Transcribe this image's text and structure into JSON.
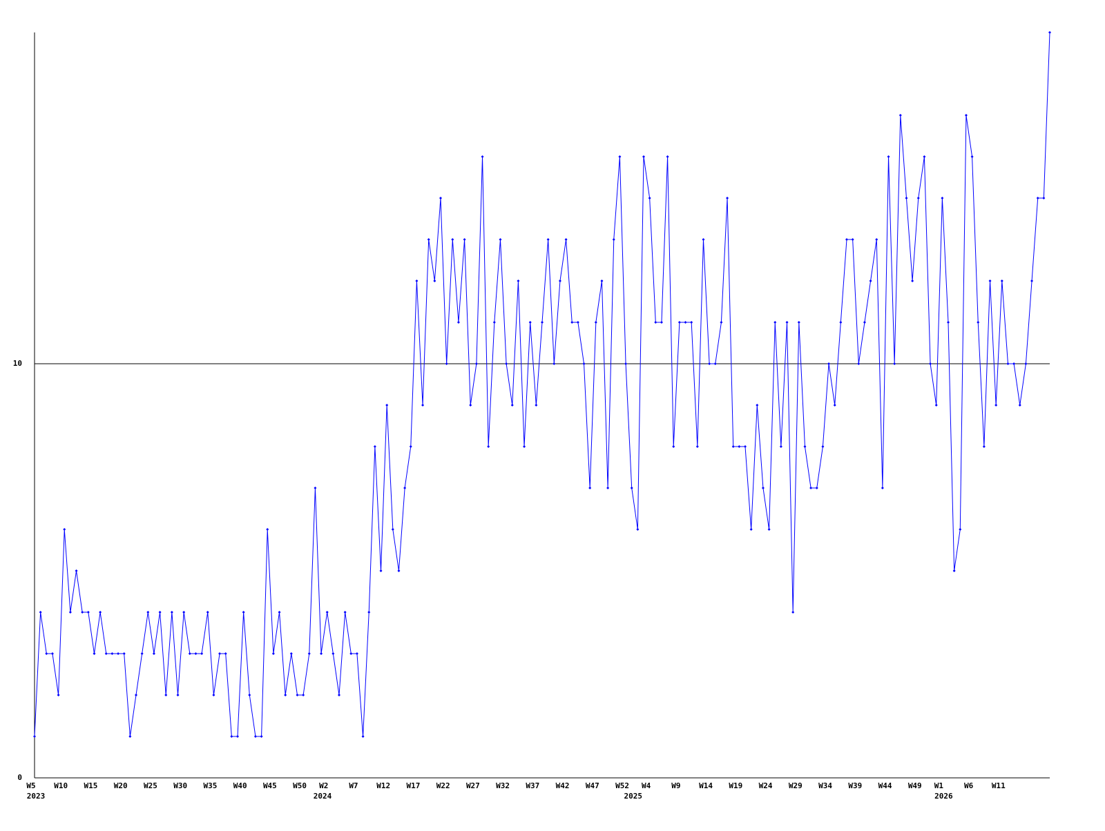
{
  "chart_data": {
    "type": "line",
    "categories": [
      "W5",
      null,
      null,
      null,
      null,
      "W10",
      null,
      null,
      null,
      null,
      "W15",
      null,
      null,
      null,
      null,
      "W20",
      null,
      null,
      null,
      null,
      "W25",
      null,
      null,
      null,
      null,
      "W30",
      null,
      null,
      null,
      null,
      "W35",
      null,
      null,
      null,
      null,
      "W40",
      null,
      null,
      null,
      null,
      "W45",
      null,
      null,
      null,
      null,
      "W50",
      null,
      null,
      null,
      "W2",
      null,
      null,
      null,
      null,
      "W7",
      null,
      null,
      null,
      null,
      "W12",
      null,
      null,
      null,
      null,
      "W17",
      null,
      null,
      null,
      null,
      "W22",
      null,
      null,
      null,
      null,
      "W27",
      null,
      null,
      null,
      null,
      "W32",
      null,
      null,
      null,
      null,
      "W37",
      null,
      null,
      null,
      null,
      "W42",
      null,
      null,
      null,
      null,
      "W47",
      null,
      null,
      null,
      null,
      "W52",
      null,
      null,
      null,
      "W4",
      null,
      null,
      null,
      null,
      "W9",
      null,
      null,
      null,
      null,
      "W14",
      null,
      null,
      null,
      null,
      "W19",
      null,
      null,
      null,
      null,
      "W24",
      null,
      null,
      null,
      null,
      "W29",
      null,
      null,
      null,
      null,
      "W34",
      null,
      null,
      null,
      null,
      "W39",
      null,
      null,
      null,
      null,
      "W44",
      null,
      null,
      null,
      null,
      "W49",
      null,
      null,
      null,
      "W1",
      null,
      null,
      null,
      null,
      "W6",
      null,
      null,
      null,
      null,
      "W11",
      null,
      null,
      null,
      null,
      null,
      null,
      null,
      null
    ],
    "category_years": [
      "2023",
      null,
      null,
      null,
      null,
      null,
      null,
      null,
      null,
      null,
      null,
      null,
      null,
      null,
      null,
      null,
      null,
      null,
      null,
      null,
      null,
      null,
      null,
      null,
      null,
      null,
      null,
      null,
      null,
      null,
      null,
      null,
      null,
      null,
      null,
      null,
      null,
      null,
      null,
      null,
      null,
      null,
      null,
      null,
      null,
      null,
      null,
      null,
      "2024",
      null,
      null,
      null,
      null,
      null,
      null,
      null,
      null,
      null,
      null,
      null,
      null,
      null,
      null,
      null,
      null,
      null,
      null,
      null,
      null,
      null,
      null,
      null,
      null,
      null,
      null,
      null,
      null,
      null,
      null,
      null,
      null,
      null,
      null,
      null,
      null,
      null,
      null,
      null,
      null,
      null,
      null,
      null,
      null,
      null,
      null,
      null,
      null,
      null,
      null,
      null,
      "2025",
      null,
      null,
      null,
      null,
      null,
      null,
      null,
      null,
      null,
      null,
      null,
      null,
      null,
      null,
      null,
      null,
      null,
      null,
      null,
      null,
      null,
      null,
      null,
      null,
      null,
      null,
      null,
      null,
      null,
      null,
      null,
      null,
      null,
      null,
      null,
      null,
      null,
      null,
      null,
      null,
      null,
      null,
      null,
      null,
      null,
      null,
      null,
      null,
      null,
      null,
      null,
      "2026",
      null,
      null,
      null,
      null,
      null,
      null,
      null,
      null,
      null,
      null,
      null,
      null,
      null,
      null,
      null,
      null,
      null,
      null
    ],
    "series": [
      {
        "color": "#0000ff",
        "values": [
          1,
          4,
          3,
          3,
          2,
          6,
          4,
          5,
          4,
          4,
          3,
          4,
          3,
          3,
          3,
          3,
          1,
          2,
          3,
          4,
          3,
          4,
          2,
          4,
          2,
          4,
          3,
          3,
          3,
          4,
          2,
          3,
          3,
          1,
          1,
          4,
          2,
          1,
          1,
          6,
          3,
          4,
          2,
          3,
          2,
          2,
          3,
          7,
          3,
          4,
          3,
          2,
          4,
          3,
          3,
          1,
          4,
          8,
          5,
          9,
          6,
          5,
          7,
          8,
          12,
          9,
          13,
          12,
          14,
          10,
          13,
          11,
          13,
          9,
          10,
          15,
          8,
          11,
          13,
          10,
          9,
          12,
          8,
          11,
          9,
          11,
          13,
          10,
          12,
          13,
          11,
          11,
          10,
          7,
          11,
          12,
          7,
          13,
          15,
          10,
          7,
          6,
          15,
          14,
          11,
          11,
          15,
          8,
          11,
          11,
          11,
          8,
          13,
          10,
          10,
          11,
          14,
          8,
          8,
          8,
          6,
          9,
          7,
          6,
          11,
          8,
          11,
          4,
          11,
          8,
          7,
          7,
          8,
          10,
          9,
          11,
          13,
          13,
          10,
          11,
          12,
          13,
          7,
          15,
          10,
          16,
          14,
          12,
          14,
          15,
          10,
          9,
          14,
          11,
          5,
          6,
          16,
          15,
          11,
          8,
          12,
          9,
          12,
          10,
          10,
          9,
          10,
          12,
          14,
          14,
          18
        ]
      }
    ],
    "ylim": [
      0,
      18
    ],
    "yticks": [
      0,
      10
    ],
    "grid": true
  }
}
